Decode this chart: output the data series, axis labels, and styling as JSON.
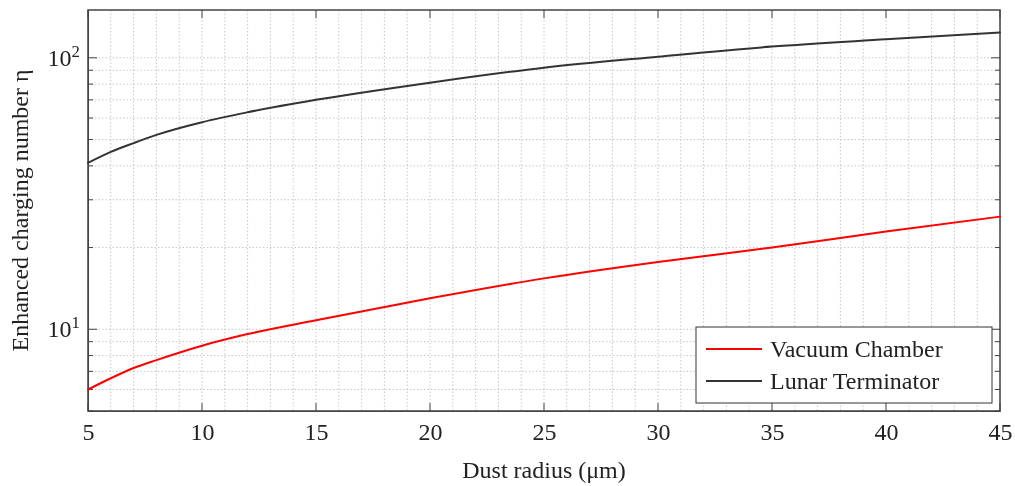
{
  "chart_data": {
    "type": "line",
    "xlabel": "Dust radius (μm)",
    "ylabel": "Enhanced charging number η",
    "x": [
      5,
      6,
      7,
      8,
      10,
      12,
      15,
      20,
      25,
      30,
      35,
      40,
      45
    ],
    "series": [
      {
        "name": "Vacuum Chamber",
        "color": "#ff0000",
        "values": [
          6.0,
          6.6,
          7.2,
          7.7,
          8.7,
          9.6,
          10.8,
          13.0,
          15.4,
          17.7,
          20.0,
          22.9,
          26.0
        ]
      },
      {
        "name": "Lunar Terminator",
        "color": "#333333",
        "values": [
          41,
          45,
          48.5,
          52,
          57.9,
          63,
          70,
          81,
          92,
          101,
          110,
          117,
          124
        ]
      }
    ],
    "xlim": [
      5,
      45
    ],
    "xticks": [
      5,
      {
        "value": 6,
        "label": null
      },
      {
        "value": 7,
        "label": null
      },
      {
        "value": 8,
        "label": null
      },
      {
        "value": 9,
        "label": null
      },
      10,
      {
        "value": 11,
        "label": null
      },
      {
        "value": 12,
        "label": null
      },
      {
        "value": 13,
        "label": null
      },
      {
        "value": 14,
        "label": null
      },
      15,
      {
        "value": 16,
        "label": null
      },
      {
        "value": 17,
        "label": null
      },
      {
        "value": 18,
        "label": null
      },
      {
        "value": 19,
        "label": null
      },
      20,
      {
        "value": 21,
        "label": null
      },
      {
        "value": 22,
        "label": null
      },
      {
        "value": 23,
        "label": null
      },
      {
        "value": 24,
        "label": null
      },
      25,
      {
        "value": 26,
        "label": null
      },
      {
        "value": 27,
        "label": null
      },
      {
        "value": 28,
        "label": null
      },
      {
        "value": 29,
        "label": null
      },
      30,
      {
        "value": 31,
        "label": null
      },
      {
        "value": 32,
        "label": null
      },
      {
        "value": 33,
        "label": null
      },
      {
        "value": 34,
        "label": null
      },
      35,
      {
        "value": 36,
        "label": null
      },
      {
        "value": 37,
        "label": null
      },
      {
        "value": 38,
        "label": null
      },
      {
        "value": 39,
        "label": null
      },
      40,
      {
        "value": 41,
        "label": null
      },
      {
        "value": 42,
        "label": null
      },
      {
        "value": 43,
        "label": null
      },
      {
        "value": 44,
        "label": null
      },
      45
    ],
    "ylim": [
      5,
      150
    ],
    "yticks": [
      {
        "value": 5,
        "label": null
      },
      {
        "value": 6,
        "label": null
      },
      {
        "value": 7,
        "label": null
      },
      {
        "value": 8,
        "label": null
      },
      {
        "value": 9,
        "label": null
      },
      {
        "value": 10,
        "label": "10$^{1}$"
      },
      {
        "value": 20,
        "label": null
      },
      {
        "value": 30,
        "label": null
      },
      {
        "value": 40,
        "label": null
      },
      {
        "value": 50,
        "label": null
      },
      {
        "value": 60,
        "label": null
      },
      {
        "value": 70,
        "label": null
      },
      {
        "value": 80,
        "label": null
      },
      {
        "value": 90,
        "label": null
      },
      {
        "value": 100,
        "label": "10$^{2}$"
      }
    ],
    "log": "y",
    "grid": true,
    "legend": "bottom right",
    "line_style": "solid",
    "marker": "none"
  }
}
